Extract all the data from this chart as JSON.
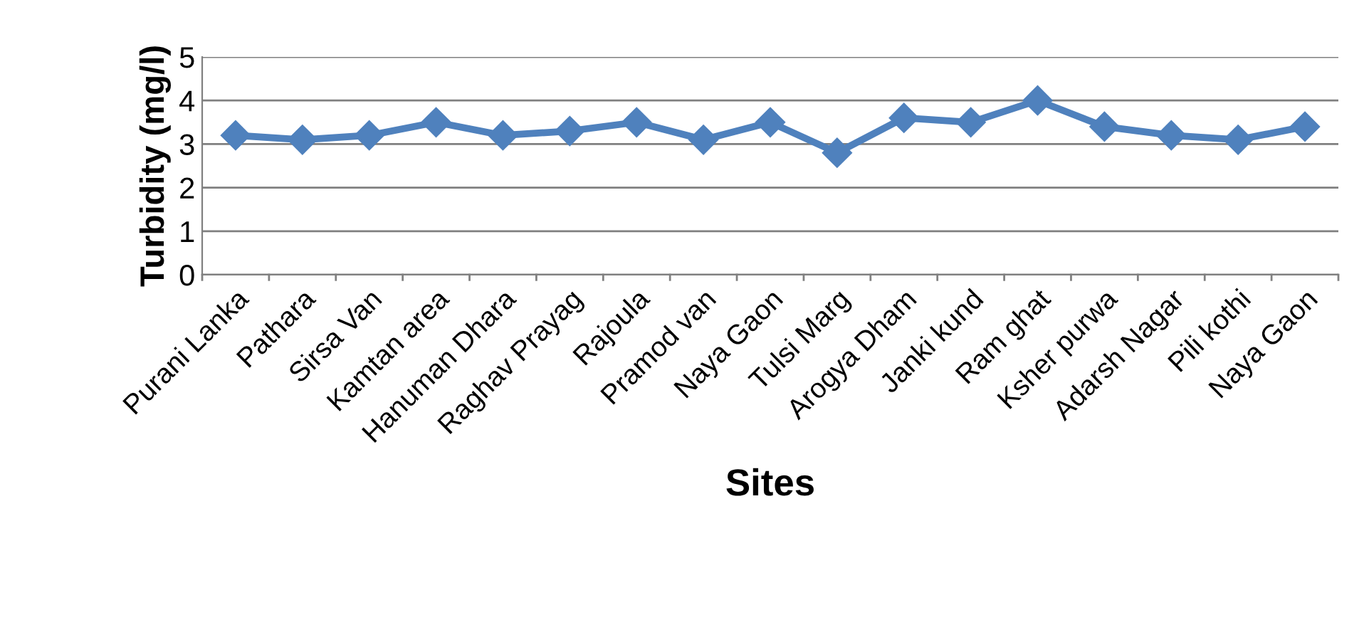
{
  "chart_data": {
    "type": "line",
    "xlabel": "Sites",
    "ylabel": "Turbidity (mg/l)",
    "categories": [
      "Purani Lanka",
      "Pathara",
      "Sirsa Van",
      "Kamtan area",
      "Hanuman Dhara",
      "Raghav Prayag",
      "Rajoula",
      "Pramod van",
      "Naya Gaon",
      "Tulsi Marg",
      "Arogya Dham",
      "Janki kund",
      "Ram ghat",
      "Ksher purwa",
      "Adarsh Nagar",
      "Pili kothi",
      "Naya Gaon"
    ],
    "series": [
      {
        "color": "#4f81bd",
        "values": [
          3.2,
          3.1,
          3.2,
          3.5,
          3.2,
          3.3,
          3.5,
          3.1,
          3.5,
          2.8,
          3.6,
          3.5,
          4.0,
          3.4,
          3.2,
          3.1,
          3.4
        ]
      }
    ],
    "ylim": [
      0,
      5
    ],
    "yticks": [
      0,
      1,
      2,
      3,
      4,
      5
    ],
    "grid": "y",
    "marker": "diamond",
    "line_style": "solid"
  }
}
